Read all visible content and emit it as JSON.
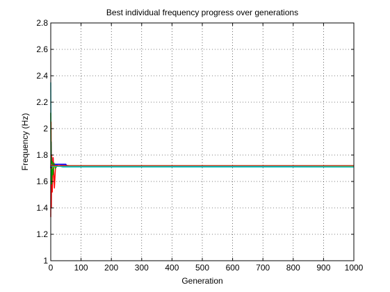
{
  "chart_data": {
    "type": "line",
    "title": "Best individual frequency progress over generations",
    "xlabel": "Generation",
    "ylabel": "Frequency (Hz)",
    "xlim": [
      0,
      1000
    ],
    "ylim": [
      1,
      2.8
    ],
    "grid": true,
    "x_ticks": [
      "0",
      "100",
      "200",
      "300",
      "400",
      "500",
      "600",
      "700",
      "800",
      "900",
      "1000"
    ],
    "y_ticks": [
      "1",
      "1.2",
      "1.4",
      "1.6",
      "1.8",
      "2",
      "2.2",
      "2.4",
      "2.6",
      "2.8"
    ],
    "series": [
      {
        "color": "#00bfbf",
        "x": [
          0,
          1,
          2,
          3,
          5,
          8,
          12,
          20,
          40,
          100,
          1000
        ],
        "y": [
          2.35,
          1.7,
          1.9,
          1.65,
          1.75,
          1.7,
          1.73,
          1.72,
          1.71,
          1.71,
          1.71
        ]
      },
      {
        "color": "#bf00bf",
        "x": [
          0,
          1,
          2,
          4,
          6,
          10,
          15,
          25,
          60,
          1000
        ],
        "y": [
          1.7,
          1.82,
          1.62,
          1.78,
          1.68,
          1.74,
          1.72,
          1.73,
          1.72,
          1.72
        ]
      },
      {
        "color": "#0000ff",
        "x": [
          0,
          2,
          4,
          8,
          15,
          30,
          50,
          52,
          1000
        ],
        "y": [
          1.7,
          1.76,
          1.7,
          1.73,
          1.73,
          1.73,
          1.73,
          1.72,
          1.72
        ]
      },
      {
        "color": "#ff0000",
        "x": [
          0,
          1,
          2,
          3,
          5,
          8,
          12,
          16,
          25,
          1000
        ],
        "y": [
          1.33,
          2.05,
          1.4,
          1.8,
          1.52,
          1.78,
          1.55,
          1.72,
          1.72,
          1.72
        ]
      },
      {
        "color": "#00a000",
        "x": [
          0,
          1,
          2,
          3,
          5,
          7,
          10,
          15,
          22,
          30,
          1000
        ],
        "y": [
          2.12,
          1.6,
          1.78,
          1.58,
          1.75,
          1.65,
          1.74,
          1.7,
          1.72,
          1.72,
          1.72
        ]
      },
      {
        "color": "#bfbf00",
        "x": [
          0,
          2,
          5,
          8,
          12,
          20,
          1000
        ],
        "y": [
          1.69,
          1.73,
          1.7,
          1.72,
          1.71,
          1.715,
          1.715
        ]
      },
      {
        "color": "#404040",
        "x": [
          0,
          3,
          6,
          10,
          20,
          1000
        ],
        "y": [
          1.72,
          1.7,
          1.73,
          1.72,
          1.72,
          1.72
        ]
      },
      {
        "color": "#00bfbf",
        "x": [
          0,
          50,
          360,
          1000
        ],
        "y": [
          1.715,
          1.715,
          1.715,
          1.71
        ]
      },
      {
        "color": "#b04020",
        "x": [
          0,
          360,
          1000
        ],
        "y": [
          1.72,
          1.72,
          1.72
        ]
      }
    ]
  }
}
